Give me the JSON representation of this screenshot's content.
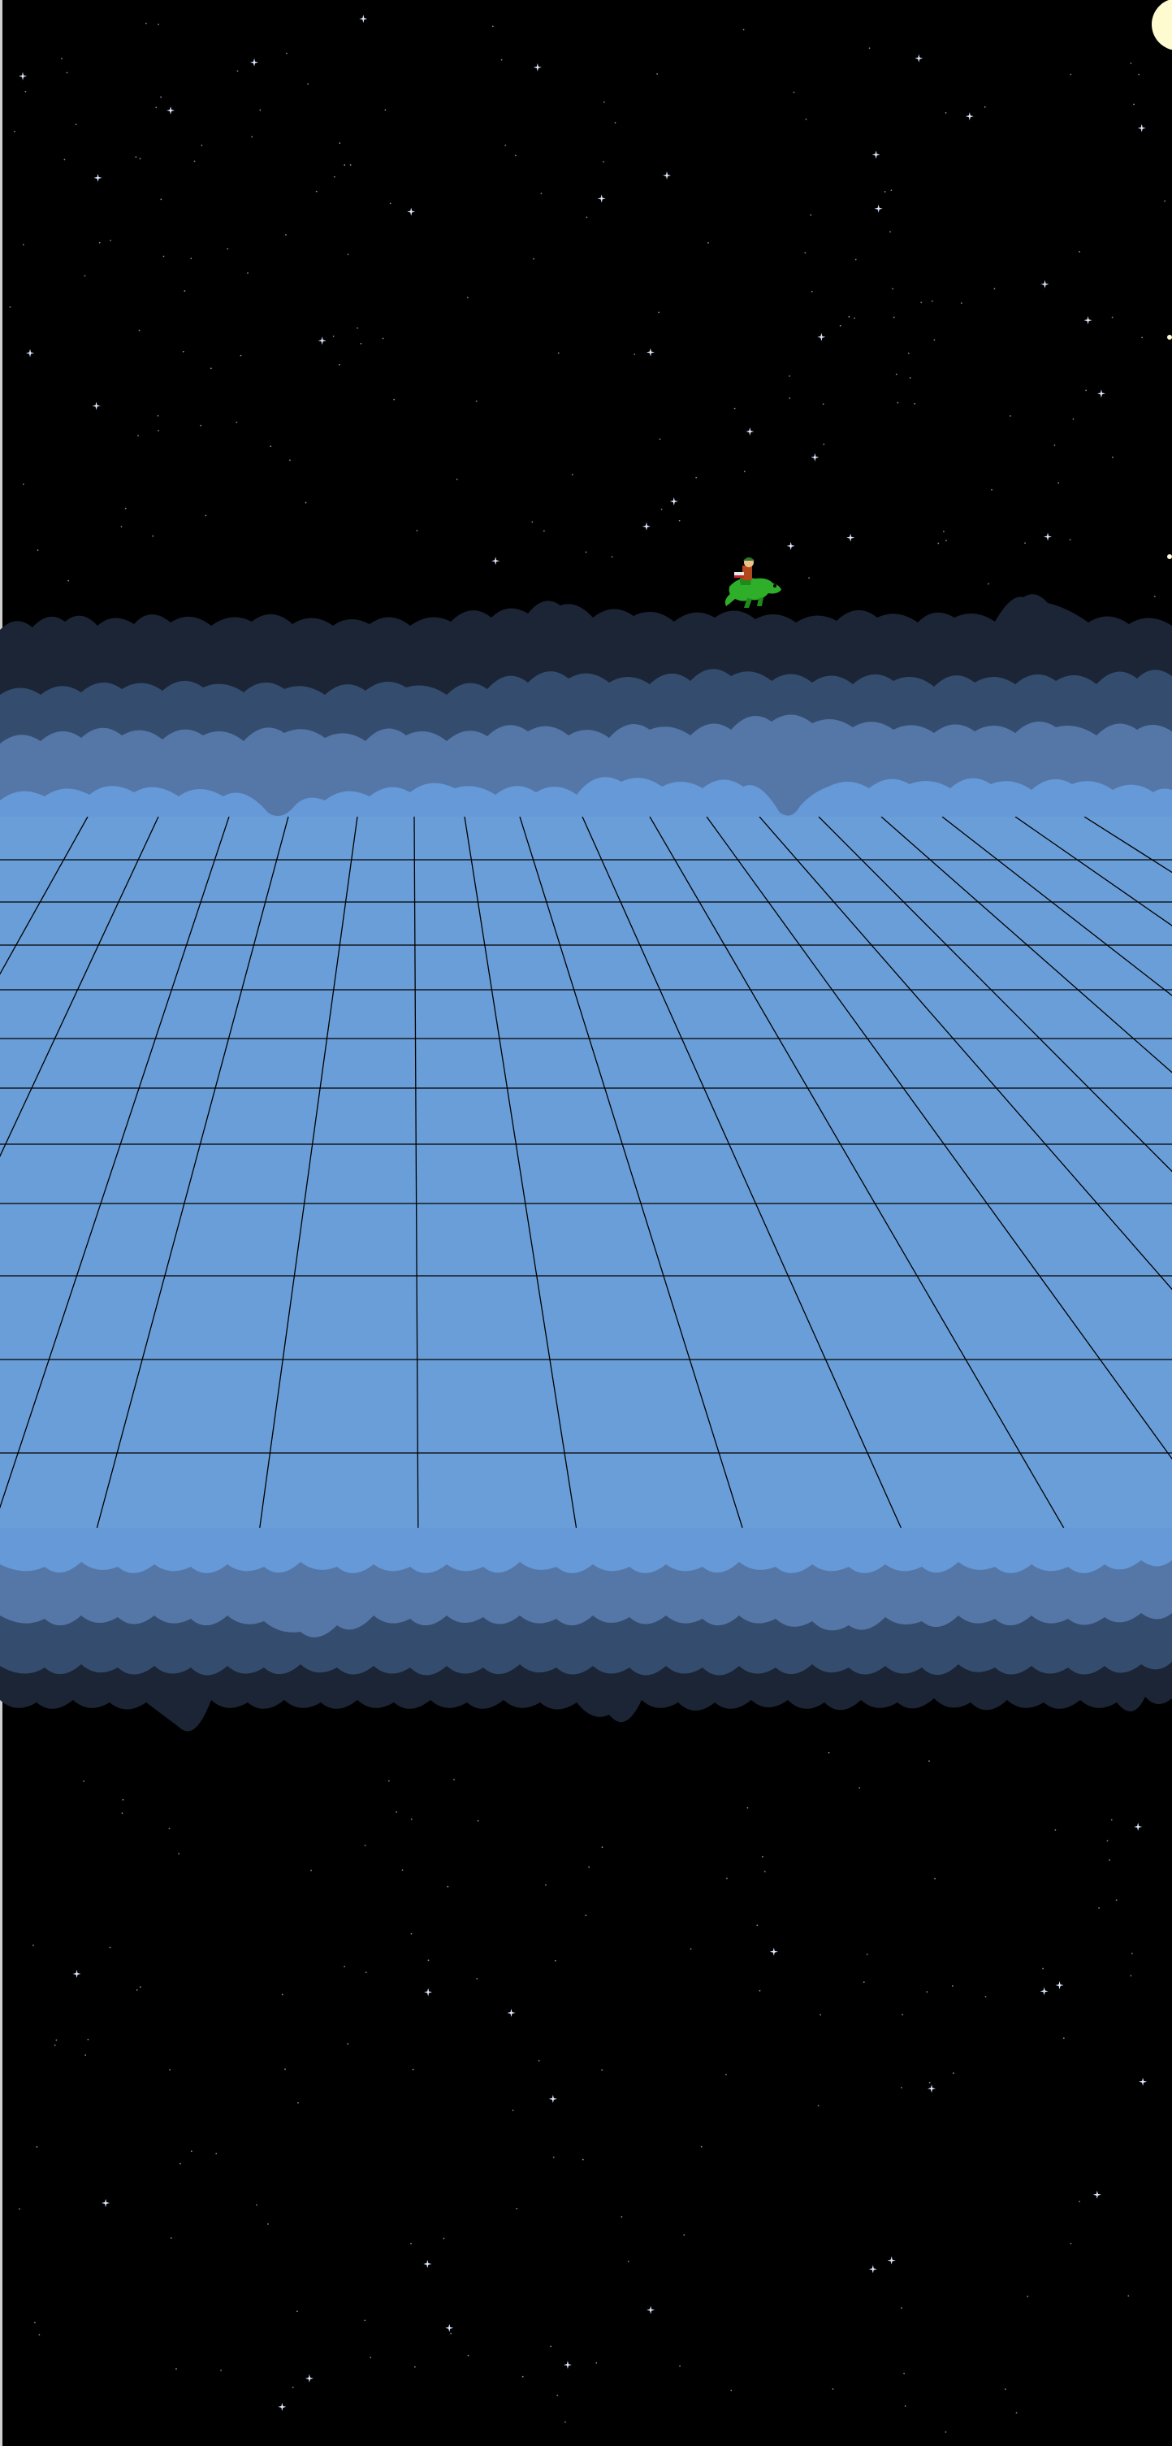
{
  "scene": {
    "title": "",
    "sky_color": "#000000",
    "star_color": "#dce6ff",
    "moon_color": "#fffbd0",
    "floor_color": "#6a9ed8",
    "grid_line_color": "#000000",
    "cloud_colors": {
      "far": "#1b2536",
      "mid": "#344d6e",
      "near": "#5577a8",
      "front": "#6699d8"
    },
    "elements": {
      "player_sprite": "dragon-rider",
      "moon": "moon-icon",
      "stars": "star-icon"
    },
    "star_count_top": 60,
    "star_count_bottom": 40
  }
}
